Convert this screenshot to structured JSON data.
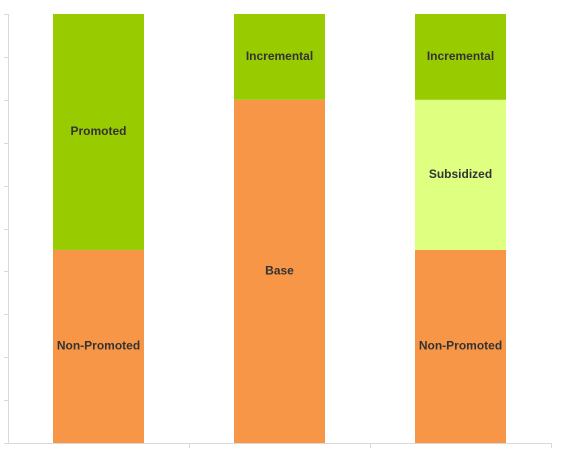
{
  "chart_data": {
    "type": "stacked-bar",
    "categories": [
      null,
      null,
      null
    ],
    "series": [
      {
        "name": "Non-Promoted",
        "color": "#f79646",
        "values": [
          45,
          null,
          45
        ]
      },
      {
        "name": "Base",
        "color": "#f79646",
        "values": [
          null,
          80,
          null
        ]
      },
      {
        "name": "Promoted",
        "color": "#99cc00",
        "values": [
          55,
          null,
          null
        ]
      },
      {
        "name": "Subsidized",
        "color": "#dfff80",
        "values": [
          null,
          null,
          35
        ]
      },
      {
        "name": "Incremental",
        "color": "#99cc00",
        "values": [
          null,
          20,
          20
        ]
      }
    ],
    "ylim": [
      0,
      100
    ],
    "yticks": [
      0,
      10,
      20,
      30,
      40,
      50,
      60,
      70,
      80,
      90,
      100
    ]
  }
}
